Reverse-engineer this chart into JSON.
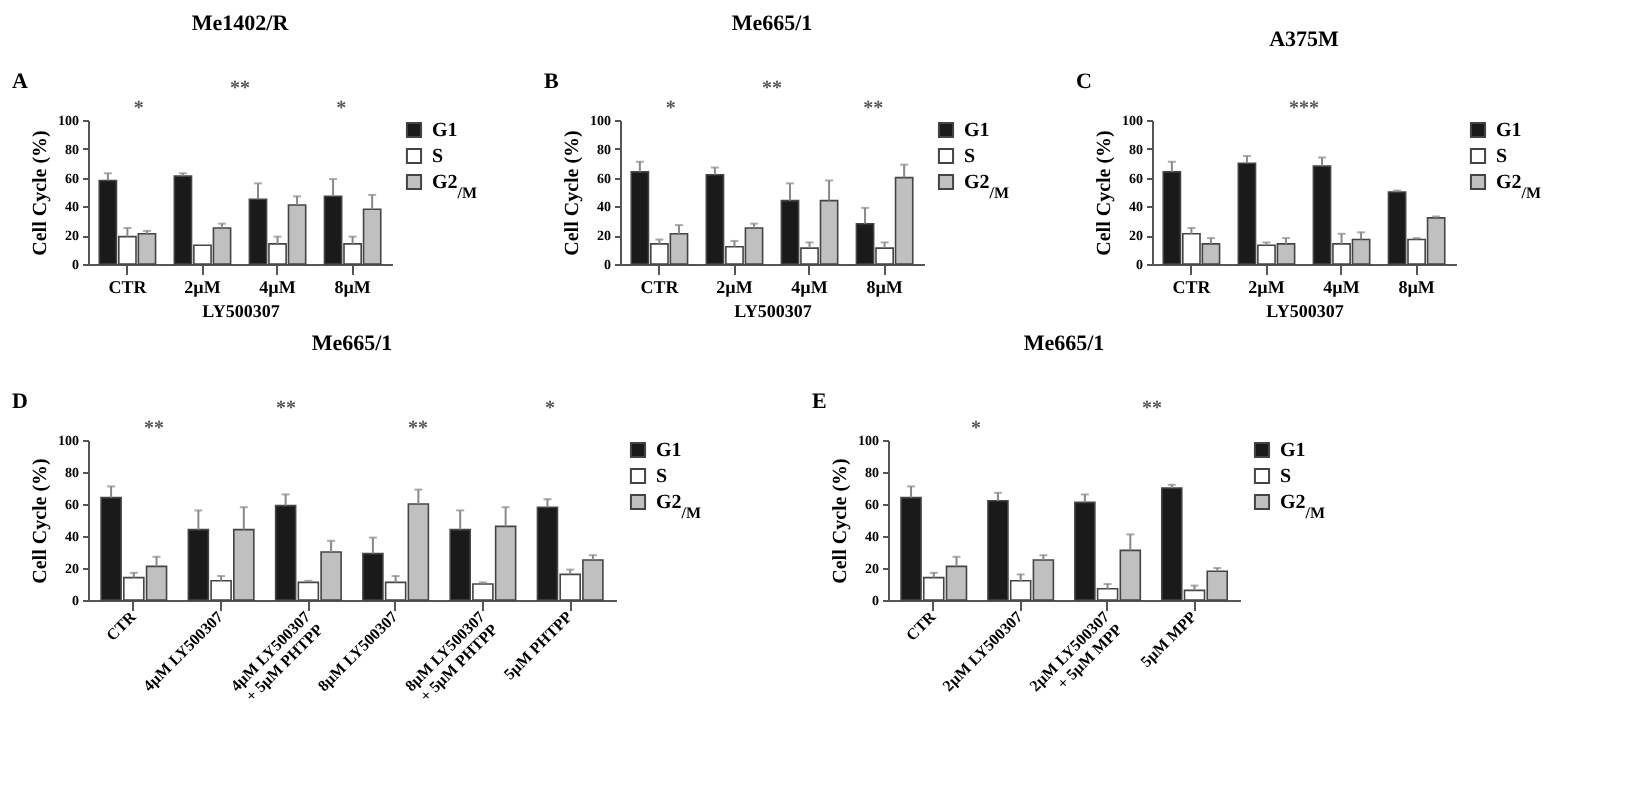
{
  "chart_data": [
    {
      "type": "bar",
      "title": "Me1402/R",
      "xlabel": "LY500307",
      "ylabel": "Cell Cycle (%)",
      "categories": [
        "CTR",
        "2µM",
        "4µM",
        "8µM"
      ],
      "series": [
        {
          "name": "G1",
          "color": "#1a1a1a",
          "values": [
            58,
            61,
            45,
            47
          ],
          "errors": [
            [
              58,
              63
            ],
            [
              61,
              63
            ],
            [
              45,
              56
            ],
            [
              47,
              59
            ]
          ]
        },
        {
          "name": "S",
          "color": "#ffffff",
          "values": [
            19,
            13,
            14,
            14
          ],
          "errors": [
            [
              19,
              25
            ],
            null,
            [
              14,
              19
            ],
            [
              14,
              19
            ]
          ]
        },
        {
          "name": "G2$_{/M}$",
          "color": "#c0c0c0",
          "values": [
            21,
            25,
            41,
            38
          ],
          "errors": [
            [
              21,
              23
            ],
            [
              25,
              28
            ],
            [
              41,
              47
            ],
            [
              38,
              48
            ]
          ]
        }
      ],
      "annotations": [
        "A",
        "*",
        "**",
        "*"
      ],
      "ylim": [
        0,
        100
      ],
      "yticks": [
        0,
        20,
        40,
        60,
        80,
        100
      ],
      "grid": false,
      "legend": "top right"
    },
    {
      "type": "bar",
      "title": "Me665/1",
      "xlabel": "LY500307",
      "ylabel": "Cell Cycle (%)",
      "categories": [
        "CTR",
        "2µM",
        "4µM",
        "8µM"
      ],
      "series": [
        {
          "name": "G1",
          "color": "#1a1a1a",
          "values": [
            64,
            62,
            44,
            28
          ],
          "errors": [
            [
              64,
              71
            ],
            [
              62,
              67
            ],
            [
              44,
              56
            ],
            [
              28,
              39
            ]
          ]
        },
        {
          "name": "S",
          "color": "#ffffff",
          "values": [
            14,
            12,
            11,
            11
          ],
          "errors": [
            [
              14,
              17
            ],
            [
              12,
              16
            ],
            [
              11,
              15
            ],
            [
              11,
              15
            ]
          ]
        },
        {
          "name": "G2$_{/M}$",
          "color": "#c0c0c0",
          "values": [
            21,
            25,
            44,
            60
          ],
          "errors": [
            [
              21,
              27
            ],
            [
              25,
              28
            ],
            [
              44,
              58
            ],
            [
              60,
              69
            ]
          ]
        }
      ],
      "annotations": [
        "B",
        "*",
        "**",
        "**"
      ],
      "ylim": [
        0,
        100
      ],
      "yticks": [
        0,
        20,
        40,
        60,
        80,
        100
      ],
      "grid": false,
      "legend": "top right"
    },
    {
      "type": "bar",
      "title": "A375M",
      "xlabel": "LY500307",
      "ylabel": "Cell Cycle (%)",
      "categories": [
        "CTR",
        "2µM",
        "4µM",
        "8µM"
      ],
      "series": [
        {
          "name": "G1",
          "color": "#1a1a1a",
          "values": [
            64,
            70,
            68,
            50
          ],
          "errors": [
            [
              64,
              71
            ],
            [
              70,
              75
            ],
            [
              68,
              74
            ],
            [
              50,
              51
            ]
          ]
        },
        {
          "name": "S",
          "color": "#ffffff",
          "values": [
            21,
            13,
            14,
            17
          ],
          "errors": [
            [
              21,
              25
            ],
            [
              13,
              15
            ],
            [
              14,
              21
            ],
            [
              17,
              18
            ]
          ]
        },
        {
          "name": "G2$_{/M}$",
          "color": "#c0c0c0",
          "values": [
            14,
            14,
            17,
            32
          ],
          "errors": [
            [
              14,
              18
            ],
            [
              14,
              18
            ],
            [
              17,
              22
            ],
            [
              32,
              33
            ]
          ]
        }
      ],
      "annotations": [
        "C",
        "***"
      ],
      "ylim": [
        0,
        100
      ],
      "yticks": [
        0,
        20,
        40,
        60,
        80,
        100
      ],
      "grid": false,
      "legend": "top right"
    },
    {
      "type": "bar",
      "title": "Me665/1",
      "ylabel": "Cell Cycle (%)",
      "categories": [
        "CTR",
        "4µM LY500307",
        "4µM LY500307\n+ 5µM PHTPP",
        "8µM LY500307",
        "8µM LY500307\n+ 5µM PHTPP",
        "5µM PHTPP"
      ],
      "series": [
        {
          "name": "G1",
          "color": "#1a1a1a",
          "values": [
            64,
            44,
            59,
            29,
            44,
            58
          ],
          "errors": [
            [
              64,
              71
            ],
            [
              44,
              56
            ],
            [
              59,
              66
            ],
            [
              29,
              39
            ],
            [
              44,
              56
            ],
            [
              58,
              63
            ]
          ]
        },
        {
          "name": "S",
          "color": "#ffffff",
          "values": [
            14,
            12,
            11,
            11,
            10,
            16
          ],
          "errors": [
            [
              14,
              17
            ],
            [
              12,
              15
            ],
            [
              11,
              12
            ],
            [
              11,
              15
            ],
            [
              10,
              11
            ],
            [
              16,
              19
            ]
          ]
        },
        {
          "name": "G2$_{/M}$",
          "color": "#c0c0c0",
          "values": [
            21,
            44,
            30,
            60,
            46,
            25
          ],
          "errors": [
            [
              21,
              27
            ],
            [
              44,
              58
            ],
            [
              30,
              37
            ],
            [
              60,
              69
            ],
            [
              46,
              58
            ],
            [
              25,
              28
            ]
          ]
        }
      ],
      "annotations": [
        "D",
        "**",
        "**",
        "**",
        "*"
      ],
      "ylim": [
        0,
        100
      ],
      "yticks": [
        0,
        20,
        40,
        60,
        80,
        100
      ],
      "grid": false,
      "legend": "top right"
    },
    {
      "type": "bar",
      "title": "Me665/1",
      "ylabel": "Cell Cycle (%)",
      "categories": [
        "CTR",
        "2µM LY500307",
        "2µM LY500307\n+ 5µM MPP",
        "5µM MPP"
      ],
      "series": [
        {
          "name": "G1",
          "color": "#1a1a1a",
          "values": [
            64,
            62,
            61,
            70
          ],
          "errors": [
            [
              64,
              71
            ],
            [
              62,
              67
            ],
            [
              61,
              66
            ],
            [
              70,
              72
            ]
          ]
        },
        {
          "name": "S",
          "color": "#ffffff",
          "values": [
            14,
            12,
            7,
            6
          ],
          "errors": [
            [
              14,
              17
            ],
            [
              12,
              16
            ],
            [
              7,
              10
            ],
            [
              6,
              9
            ]
          ]
        },
        {
          "name": "G2$_{/M}$",
          "color": "#c0c0c0",
          "values": [
            21,
            25,
            31,
            18
          ],
          "errors": [
            [
              21,
              27
            ],
            [
              25,
              28
            ],
            [
              31,
              41
            ],
            [
              18,
              20
            ]
          ]
        }
      ],
      "annotations": [
        "E",
        "*",
        "**"
      ],
      "ylim": [
        0,
        100
      ],
      "yticks": [
        0,
        20,
        40,
        60,
        80,
        100
      ],
      "grid": false,
      "legend": "top right"
    }
  ]
}
